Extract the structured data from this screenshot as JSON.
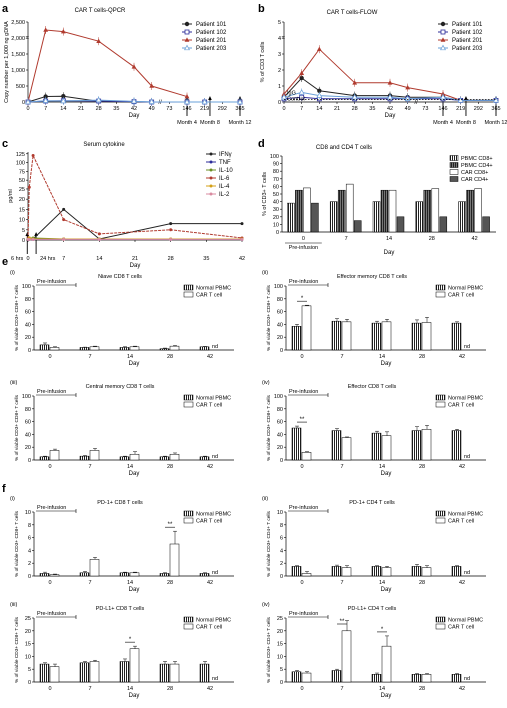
{
  "panels": {
    "a": {
      "letter": "a",
      "title": "CAR T cells-QPCR",
      "ylabel": "Copy number per 1,000 ng gDNA",
      "xlabel": "Day",
      "yticks": [
        "0",
        "500",
        "1,000",
        "1,500",
        "2,000",
        "2,500"
      ],
      "xticks": [
        "0",
        "7",
        "14",
        "21",
        "28",
        "35",
        "42",
        "49",
        "73",
        "146",
        "219",
        "292",
        "365"
      ],
      "milestones": [
        "Month 4",
        "Month 8",
        "Month 12"
      ]
    },
    "b": {
      "letter": "b",
      "title": "CAR T cells-FLOW",
      "ylabel": "% of CD3 T cells",
      "xlabel": "Day",
      "yticks": [
        "0",
        "1",
        "2",
        "3",
        "4",
        "5"
      ],
      "xticks": [
        "0",
        "7",
        "14",
        "21",
        "28",
        "35",
        "42",
        "49",
        "73",
        "146",
        "219",
        "292",
        "365"
      ],
      "milestones": [
        "Month 4",
        "Month 8",
        "Month 12"
      ],
      "control_label": "IgG\nControl"
    },
    "c": {
      "letter": "c",
      "title": "Serum cytokine",
      "ylabel": "pg/ml",
      "xlabel": "Day",
      "yticks": [
        "0",
        "5",
        "10",
        "15",
        "20",
        "25",
        "50",
        "75",
        "100",
        "125"
      ],
      "xticks": [
        "0",
        "7",
        "14",
        "21",
        "28",
        "35",
        "42"
      ],
      "arrows": [
        "6 hrs",
        "24 hrs"
      ]
    },
    "d": {
      "letter": "d",
      "title": "CD8 and CD4 T cells",
      "ylabel": "% of CD3+ T cells",
      "xlabel": "Day",
      "yticks": [
        "0",
        "10",
        "20",
        "30",
        "40",
        "50",
        "60",
        "70",
        "80",
        "90",
        "100"
      ],
      "pre": "Pre-infusion"
    },
    "e": {
      "letter": "e"
    },
    "f": {
      "letter": "f"
    }
  },
  "bar_legend_normal": "Normal PBMC",
  "bar_legend_car": "CAR T cell",
  "bar_xticks": [
    "0",
    "7",
    "14",
    "28",
    "42"
  ],
  "bar_xlabel": "Day",
  "nd": "nd",
  "pre_infusion": "Pre-infusion",
  "small_panels": [
    {
      "id": "ei",
      "roman": "(i)",
      "title": "Niave CD8 T cells",
      "ylabel": "% of viable CD3+ CD8+ T cells",
      "yticks": [
        "0",
        "20",
        "40",
        "60",
        "80",
        "100"
      ],
      "ymax": 100,
      "normal": [
        8,
        4,
        4,
        4,
        2,
        5
      ],
      "car": [
        4,
        5,
        5,
        4,
        6,
        null
      ],
      "nerr": [
        3,
        0.5,
        1,
        1,
        1,
        0.5
      ],
      "cerr": [
        1,
        1,
        1,
        1,
        1,
        0
      ],
      "star": null
    },
    {
      "id": "eii",
      "roman": "(ii)",
      "title": "Effector memory CD8 T cells",
      "ylabel": "% of viable CD3+ CD8+ T cells",
      "yticks": [
        "0",
        "20",
        "40",
        "60",
        "80",
        "100"
      ],
      "ymax": 100,
      "normal": [
        37,
        45,
        42,
        44,
        42,
        42
      ],
      "car": [
        69,
        44,
        44,
        40,
        43,
        null
      ],
      "nerr": [
        3,
        4,
        3,
        4,
        5,
        2
      ],
      "cerr": [
        1,
        4,
        4,
        6,
        8,
        0
      ],
      "star": "*"
    },
    {
      "id": "eiii",
      "roman": "(iii)",
      "title": "Central memory CD8 T cells",
      "ylabel": "% of viable CD3+ CD8+ T cells",
      "yticks": [
        "0",
        "20",
        "40",
        "60",
        "80",
        "100"
      ],
      "ymax": 100,
      "normal": [
        5,
        6,
        5,
        5,
        5,
        5
      ],
      "car": [
        15,
        15,
        9,
        9,
        9,
        null
      ],
      "nerr": [
        1,
        1,
        1,
        1,
        1,
        1
      ],
      "cerr": [
        2,
        3,
        4,
        2,
        2,
        0
      ],
      "star": null
    },
    {
      "id": "eiv",
      "roman": "(iv)",
      "title": "Effector CD8 T cells",
      "ylabel": "% of viable CD3+ CD8+ T cells",
      "yticks": [
        "0",
        "20",
        "40",
        "60",
        "80",
        "100"
      ],
      "ymax": 100,
      "normal": [
        50,
        46,
        42,
        49,
        46,
        46
      ],
      "car": [
        12,
        35,
        38,
        49,
        48,
        null
      ],
      "nerr": [
        3,
        3,
        3,
        4,
        6,
        2
      ],
      "cerr": [
        1,
        1,
        6,
        2,
        6,
        0
      ],
      "star": "**"
    },
    {
      "id": "fi",
      "roman": "(i)",
      "title": "PD-1+ CD8 T cells",
      "ylabel": "% of viable CD3+ CD8+ T cells",
      "yticks": [
        "0",
        "2",
        "4",
        "6",
        "8",
        "10"
      ],
      "ymax": 10,
      "normal": [
        0.4,
        0.5,
        0.5,
        0.5,
        0.4,
        0.4
      ],
      "car": [
        0.2,
        2.6,
        0.5,
        0.5,
        5,
        null
      ],
      "nerr": [
        0.2,
        0.2,
        0.1,
        0.1,
        0.1,
        0.1
      ],
      "cerr": [
        0.1,
        0.3,
        0.1,
        0.1,
        2,
        0
      ],
      "star": "**"
    },
    {
      "id": "fii",
      "roman": "(ii)",
      "title": "PD-1+ CD4 T cells",
      "ylabel": "% of viable CD3+ CD4+ T cells",
      "yticks": [
        "0",
        "2",
        "4",
        "6",
        "8",
        "10"
      ],
      "ymax": 10,
      "normal": [
        1.5,
        1.5,
        1.5,
        1.5,
        1.5,
        1.5
      ],
      "car": [
        0.4,
        1.3,
        1.3,
        1.5,
        1.3,
        null
      ],
      "nerr": [
        0.1,
        0.2,
        0.1,
        0.1,
        0.3,
        0.1
      ],
      "cerr": [
        0.3,
        0.3,
        0.2,
        0.1,
        0.3,
        0
      ],
      "star": null
    },
    {
      "id": "fiii",
      "roman": "(iii)",
      "title": "PD-L1+ CD8 T cells",
      "ylabel": "% of viable CD3+ CD8+ T cells",
      "yticks": [
        "0",
        "5",
        "10",
        "15",
        "20",
        "25"
      ],
      "ymax": 25,
      "normal": [
        7,
        7.5,
        8,
        10,
        7,
        7
      ],
      "car": [
        6,
        8,
        13,
        7,
        7,
        null
      ],
      "nerr": [
        0.5,
        0.5,
        1,
        2,
        1,
        1
      ],
      "cerr": [
        1,
        0.5,
        1,
        1,
        1,
        0
      ],
      "star": "*"
    },
    {
      "id": "fiv",
      "roman": "(iv)",
      "title": "PD-L1+ CD4 T cells",
      "ylabel": "% of viable CD3+ CD4+ T cells",
      "yticks": [
        "0",
        "5",
        "10",
        "15",
        "20",
        "25"
      ],
      "ymax": 25,
      "normal": [
        4,
        4.5,
        3,
        3,
        3,
        3
      ],
      "car": [
        3.5,
        20,
        14,
        1,
        3,
        null
      ],
      "nerr": [
        0.5,
        0.5,
        0.5,
        0.3,
        0.3,
        0.3
      ],
      "cerr": [
        0.5,
        4,
        4,
        0.5,
        0.3,
        0
      ],
      "star": "**"
    }
  ],
  "chart_data": [
    {
      "type": "line",
      "panel": "a",
      "title": "CAR T cells-QPCR",
      "xlabel": "Day",
      "ylabel": "Copy number per 1,000 ng gDNA",
      "ylim": [
        0,
        2500
      ],
      "x": [
        "0",
        "7",
        "14",
        "28",
        "42",
        "49",
        "146",
        "219",
        "365"
      ],
      "series": [
        {
          "name": "Patient 101",
          "color": "#222222",
          "values": [
            0,
            170,
            180,
            20,
            0,
            0,
            0,
            0,
            null
          ]
        },
        {
          "name": "Patient 102",
          "color": "#2c2c9a",
          "values": [
            0,
            30,
            40,
            30,
            10,
            0,
            0,
            0,
            0
          ]
        },
        {
          "name": "Patient 201",
          "color": "#b03a2e",
          "values": [
            0,
            2250,
            2200,
            1900,
            1100,
            500,
            170,
            null,
            null
          ]
        },
        {
          "name": "Patient 203",
          "color": "#6aa0d8",
          "values": [
            0,
            40,
            30,
            60,
            20,
            5,
            0,
            0,
            0
          ]
        }
      ]
    },
    {
      "type": "line",
      "panel": "b",
      "title": "CAR T cells-FLOW",
      "xlabel": "Day",
      "ylabel": "% of CD3 T cells",
      "ylim": [
        0,
        5
      ],
      "x": [
        "0",
        "7",
        "14",
        "28",
        "42",
        "49",
        "146",
        "219",
        "365"
      ],
      "series": [
        {
          "name": "Patient 101",
          "color": "#222222",
          "values": [
            0.3,
            1.5,
            0.7,
            0.4,
            0.4,
            0.3,
            0.3,
            0.1,
            0.1
          ]
        },
        {
          "name": "Patient 102",
          "color": "#2c2c9a",
          "values": [
            0.2,
            0.3,
            0.2,
            0.2,
            0.2,
            0.2,
            0.2,
            0.1,
            0.1
          ]
        },
        {
          "name": "Patient 201",
          "color": "#b03a2e",
          "values": [
            0.5,
            1.8,
            3.3,
            1.2,
            1.2,
            0.9,
            0.5,
            0.1,
            null
          ]
        },
        {
          "name": "Patient 203",
          "color": "#6aa0d8",
          "values": [
            0.3,
            0.6,
            0.4,
            0.3,
            0.3,
            0.2,
            0.3,
            0.1,
            0.1
          ]
        }
      ]
    },
    {
      "type": "line",
      "panel": "c",
      "title": "Serum cytokine",
      "xlabel": "Day",
      "ylabel": "pg/ml",
      "x": [
        0,
        0.25,
        1,
        7,
        14,
        28,
        42
      ],
      "series": [
        {
          "name": "IFNγ",
          "color": "#222222",
          "values": [
            0.5,
            0.5,
            0.5,
            15,
            0.5,
            8,
            8
          ]
        },
        {
          "name": "TNF",
          "color": "#2c2c9a",
          "values": [
            0.3,
            0.3,
            0.3,
            0.5,
            0.3,
            0.3,
            0.3
          ]
        },
        {
          "name": "IL-10",
          "color": "#6b8e23",
          "values": [
            0.5,
            1,
            1,
            0.5,
            0.5,
            0.5,
            0.5
          ]
        },
        {
          "name": "IL-6",
          "color": "#b03a2e",
          "values": [
            0.5,
            30,
            120,
            10,
            3,
            5,
            1
          ]
        },
        {
          "name": "IL-4",
          "color": "#d4a017",
          "values": [
            0.5,
            1,
            0.5,
            0.5,
            0.5,
            0.5,
            0.5
          ]
        },
        {
          "name": "IL-2",
          "color": "#d98ba0",
          "values": [
            0.3,
            0.3,
            0.3,
            0.3,
            0.3,
            0.3,
            0.3
          ]
        }
      ]
    },
    {
      "type": "bar",
      "panel": "d",
      "title": "CD8 and CD4 T cells",
      "xlabel": "Day",
      "ylabel": "% of CD3+ T cells",
      "ylim": [
        0,
        100
      ],
      "categories": [
        "0",
        "7",
        "14",
        "28",
        "42"
      ],
      "series": [
        {
          "name": "PBMC CD8+",
          "values": [
            38,
            40,
            40,
            40,
            40
          ]
        },
        {
          "name": "PBMC CD4+",
          "values": [
            55,
            55,
            55,
            55,
            55
          ]
        },
        {
          "name": "CAR CD8+",
          "values": [
            58,
            63,
            55,
            57,
            57
          ]
        },
        {
          "name": "CAR CD4+",
          "values": [
            38,
            15,
            20,
            20,
            20
          ]
        }
      ]
    }
  ]
}
